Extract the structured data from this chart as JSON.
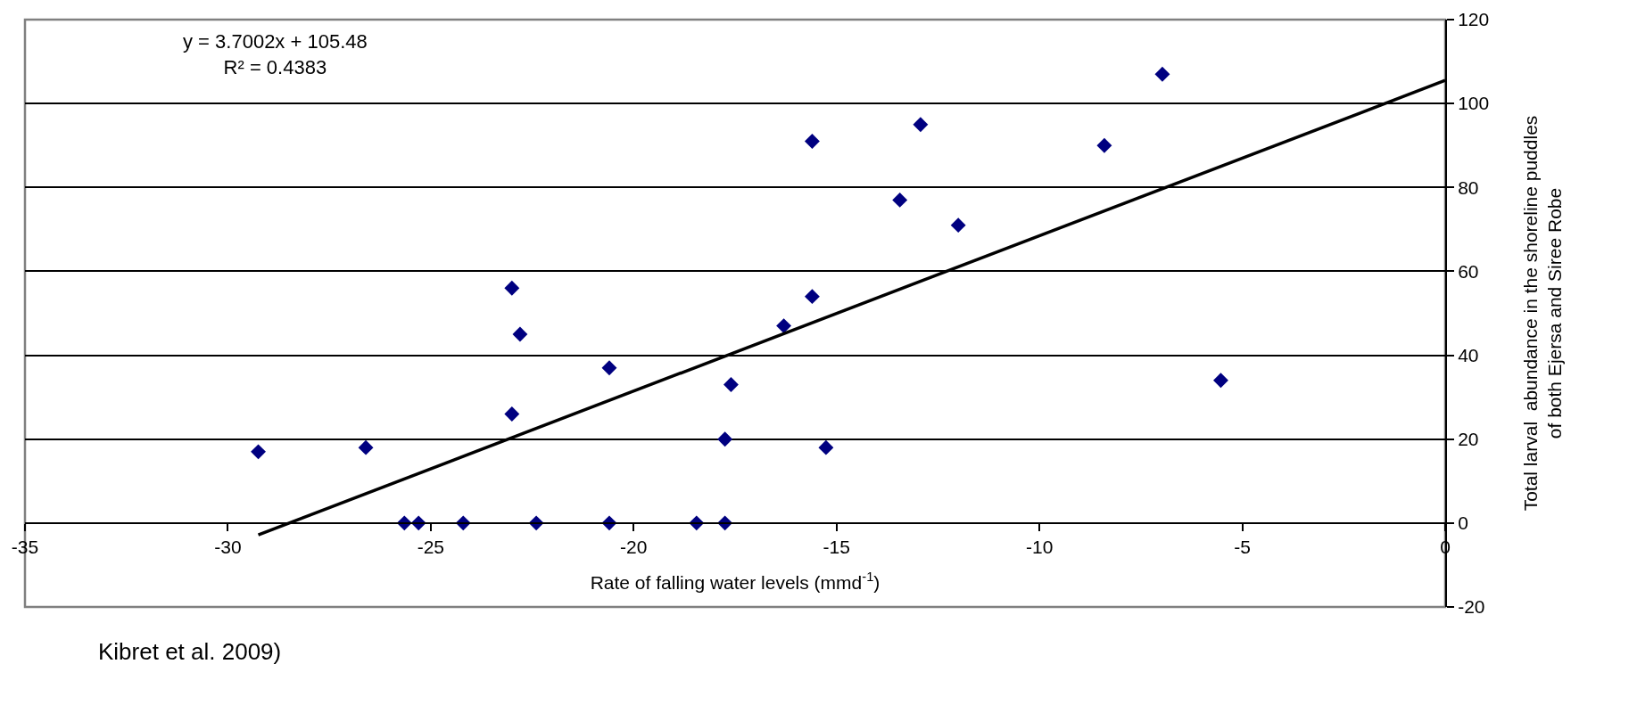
{
  "chart_data": {
    "type": "scatter",
    "xlabel": "Rate of falling water levels (mmd$^{-1}$)",
    "ylabel": "Total larval  abundance in the shoreline puddles\nof both Ejersa and Siree Robe",
    "annotations": [
      "y = 3.7002x + 105.48\nR² = 0.4383",
      "Kibret et al. 2009)"
    ],
    "series": [
      {
        "color": "#000080",
        "marker": "diamond",
        "x": [
          -29.25,
          -26.6,
          -25.65,
          -25.3,
          -24.2,
          -23.0,
          -22.8,
          -23.0,
          -22.4,
          -20.6,
          -20.6,
          -18.45,
          -17.75,
          -17.75,
          -17.6,
          -16.3,
          -15.6,
          -15.6,
          -15.26,
          -13.44,
          -12.93,
          -12.0,
          -8.4,
          -6.97,
          -5.53
        ],
        "values": [
          17,
          18,
          0,
          0,
          0,
          56,
          45,
          26,
          0,
          37,
          0,
          0,
          0,
          20,
          33,
          47,
          54,
          91,
          18,
          77,
          95,
          71,
          90,
          107,
          34
        ]
      },
      {
        "type": "line",
        "color": "#000000",
        "line_style": "solid",
        "x": [
          -29.25,
          0
        ],
        "values": [
          -2.8,
          105.5
        ]
      }
    ],
    "xlim": [
      -35,
      0
    ],
    "xticks": [
      -35,
      -30,
      -25,
      -20,
      -15,
      -10,
      -5,
      0
    ],
    "ylim": [
      -20,
      120
    ],
    "yticks": [
      -20,
      0,
      20,
      40,
      60,
      80,
      100,
      120
    ],
    "grid": "y"
  }
}
